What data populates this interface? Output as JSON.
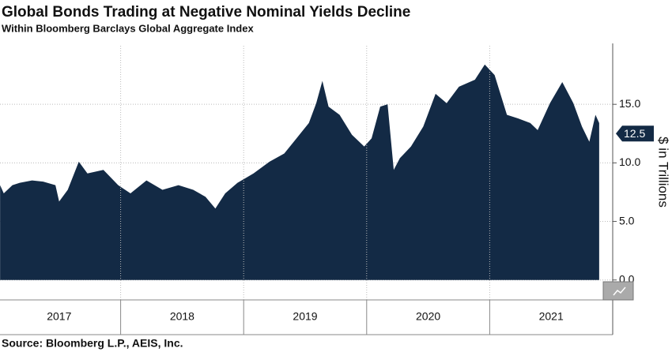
{
  "chart_data": {
    "type": "area",
    "title": "Global Bonds Trading at Negative Nominal Yields Decline",
    "subtitle": "Within Bloomberg Barclays Global Aggregate Index",
    "source": "Source: Bloomberg L.P., AEIS, Inc.",
    "ylabel": "$ in Trillions",
    "series": [
      {
        "color": "#132a45",
        "x": [
          2017.02,
          2017.05,
          2017.12,
          2017.18,
          2017.28,
          2017.37,
          2017.47,
          2017.5,
          2017.57,
          2017.66,
          2017.73,
          2017.86,
          2017.98,
          2018.08,
          2018.21,
          2018.34,
          2018.47,
          2018.59,
          2018.69,
          2018.77,
          2018.85,
          2018.95,
          2019.08,
          2019.21,
          2019.33,
          2019.43,
          2019.53,
          2019.59,
          2019.64,
          2019.69,
          2019.78,
          2019.88,
          2019.98,
          2020.04,
          2020.11,
          2020.17,
          2020.22,
          2020.27,
          2020.36,
          2020.46,
          2020.56,
          2020.65,
          2020.75,
          2020.88,
          2020.96,
          2021.04,
          2021.14,
          2021.23,
          2021.33,
          2021.39,
          2021.49,
          2021.59,
          2021.68,
          2021.75,
          2021.81,
          2021.86,
          2021.89
        ],
        "values": [
          8.1,
          7.4,
          8.1,
          8.3,
          8.5,
          8.4,
          8.1,
          6.7,
          7.7,
          10.1,
          9.1,
          9.4,
          8.1,
          7.4,
          8.5,
          7.7,
          8.1,
          7.7,
          7.1,
          6.1,
          7.4,
          8.3,
          9.1,
          10.1,
          10.8,
          12.1,
          13.4,
          15.1,
          17.0,
          14.8,
          14.1,
          12.4,
          11.4,
          12.1,
          14.8,
          15.0,
          9.4,
          10.4,
          11.4,
          13.1,
          15.9,
          15.1,
          16.5,
          17.1,
          18.4,
          17.5,
          14.1,
          13.8,
          13.4,
          12.8,
          15.1,
          16.9,
          15.1,
          13.1,
          11.8,
          14.1,
          13.4
        ]
      }
    ],
    "current_value": 12.5,
    "xlim": [
      2017,
      2022
    ],
    "xticks": [
      {
        "value": 2017.5,
        "label": "2017"
      },
      {
        "value": 2018.5,
        "label": "2018"
      },
      {
        "value": 2019.5,
        "label": "2019"
      },
      {
        "value": 2020.5,
        "label": "2020"
      },
      {
        "value": 2021.5,
        "label": "2021"
      }
    ],
    "ylim": [
      -1.5,
      20
    ],
    "yticks": [
      {
        "value": 0,
        "label": "0.0"
      },
      {
        "value": 5,
        "label": "5.0"
      },
      {
        "value": 10,
        "label": "10.0"
      },
      {
        "value": 15,
        "label": "15.0"
      }
    ],
    "grid": true
  }
}
